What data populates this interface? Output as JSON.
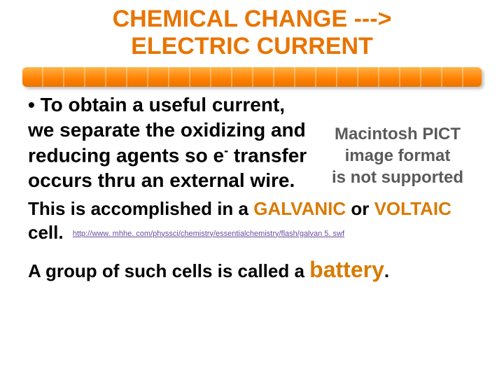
{
  "title": {
    "line1": "CHEMICAL CHANGE --->",
    "line2": "ELECTRIC CURRENT"
  },
  "bullet": {
    "pre": "• To obtain a useful current, we separate the oxidizing and reducing agents so e",
    "sup": "-",
    "post": " transfer occurs thru an external wire."
  },
  "pict": {
    "l1": "Macintosh PICT",
    "l2": "image format",
    "l3": "is not supported"
  },
  "para2": {
    "lead": "This is accomplished in a ",
    "kw1": "GALVANIC",
    "mid": " or ",
    "kw2": "VOLTAIC",
    "tail": " cell.",
    "url": "http://www. mhhe. com/physsci/chemistry/essentialchemistry/flash/galvan 5. swf"
  },
  "para3": {
    "lead": "A group of such cells is called a ",
    "kw": "battery",
    "tail": "."
  },
  "colors": {
    "title": "#e87400",
    "keyword": "#d97a00",
    "link": "#6a4c9c",
    "pict_text": "#5a5a5a"
  }
}
